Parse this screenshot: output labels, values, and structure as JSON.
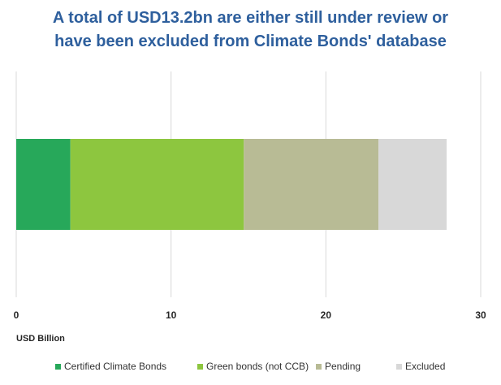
{
  "title_lines": [
    "A total of USD13.2bn are either still under review or",
    "have been excluded from Climate Bonds' database"
  ],
  "chart_data": {
    "type": "bar",
    "orientation": "horizontal",
    "stacked": true,
    "title": "A total of USD13.2bn are either still under review or have been excluded from Climate Bonds' database",
    "xlabel": "USD Billion",
    "ylabel": "",
    "xlim": [
      0,
      30
    ],
    "xticks": [
      "0",
      "10",
      "20",
      "30"
    ],
    "grid": true,
    "legend_position": "bottom",
    "categories": [
      ""
    ],
    "series": [
      {
        "name": "Certified Climate Bonds",
        "values": [
          3.5
        ],
        "color": "#27a85a"
      },
      {
        "name": "Green bonds (not CCB)",
        "values": [
          11.2
        ],
        "color": "#8dc63f"
      },
      {
        "name": "Pending",
        "values": [
          8.7
        ],
        "color": "#b8bb95"
      },
      {
        "name": "Excluded",
        "values": [
          4.4
        ],
        "color": "#d8d8d8"
      }
    ]
  }
}
